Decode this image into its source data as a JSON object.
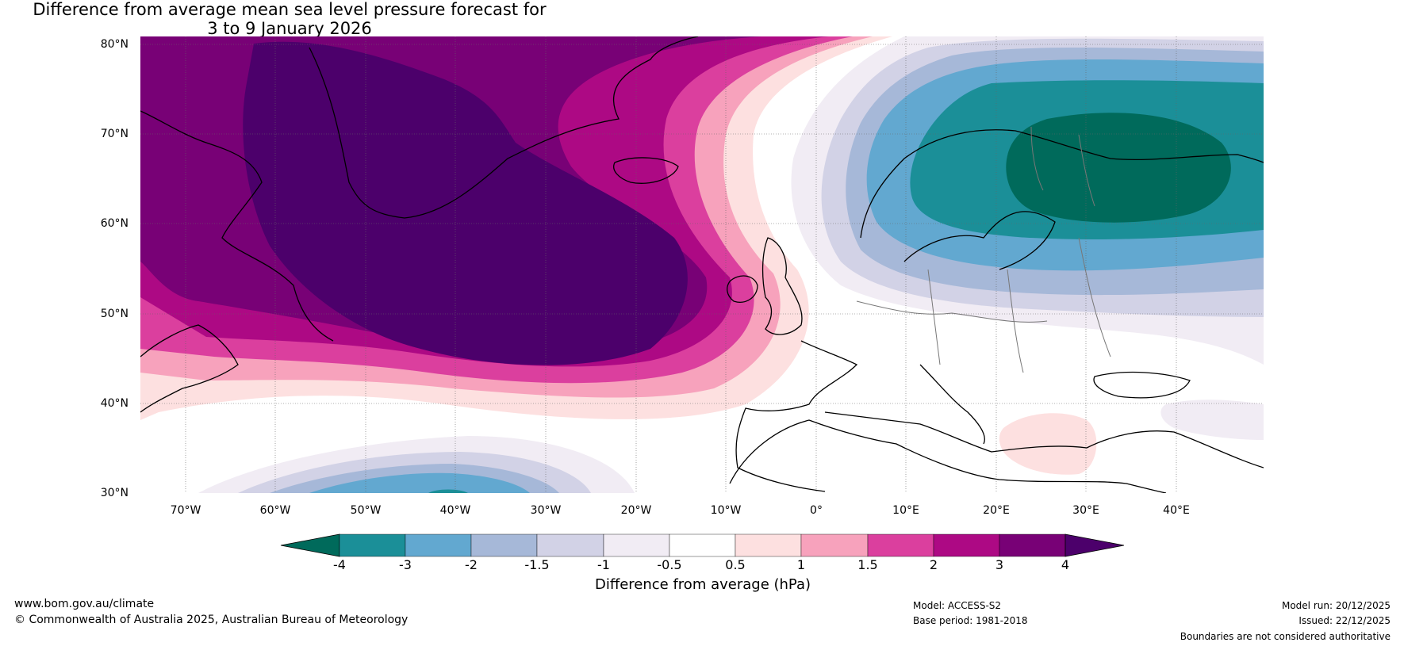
{
  "title": {
    "line1": "Difference from average mean sea level pressure forecast for",
    "line2": "3 to 9 January 2026"
  },
  "map": {
    "lat_labels": [
      "80°N",
      "70°N",
      "60°N",
      "50°N",
      "40°N",
      "30°N"
    ],
    "lon_labels": [
      "70°W",
      "60°W",
      "50°W",
      "40°W",
      "30°W",
      "20°W",
      "10°W",
      "0°",
      "10°E",
      "20°E",
      "30°E",
      "40°E"
    ],
    "lat_values": [
      80,
      70,
      60,
      50,
      40,
      30
    ],
    "lon_values": [
      -70,
      -60,
      -50,
      -40,
      -30,
      -20,
      -10,
      0,
      10,
      20,
      30,
      40
    ],
    "extent": {
      "lon_min": -75,
      "lon_max": 50,
      "lat_min": 30,
      "lat_max": 81
    }
  },
  "colorbar": {
    "ticks": [
      "-4",
      "-3",
      "-2",
      "-1.5",
      "-1",
      "-0.5",
      "0.5",
      "1",
      "1.5",
      "2",
      "3",
      "4"
    ],
    "colors": [
      "#1b8f98",
      "#62a8d0",
      "#a6b8d8",
      "#d2d2e6",
      "#f1ecf4",
      "#ffffff",
      "#fde0e0",
      "#f7a2bc",
      "#db3f9e",
      "#ad0984",
      "#780176"
    ],
    "under_color": "#006a5b",
    "over_color": "#4c006b",
    "label": "Difference from average (hPa)"
  },
  "footer": {
    "website": "www.bom.gov.au/climate",
    "copyright": "© Commonwealth of Australia 2025, Australian Bureau of Meteorology",
    "model": "Model: ACCESS-S2",
    "base_period": "Base period: 1981-2018",
    "model_run": "Model run: 20/12/2025",
    "issued": "Issued: 22/12/2025",
    "disclaimer": "Boundaries are not considered authoritative"
  }
}
